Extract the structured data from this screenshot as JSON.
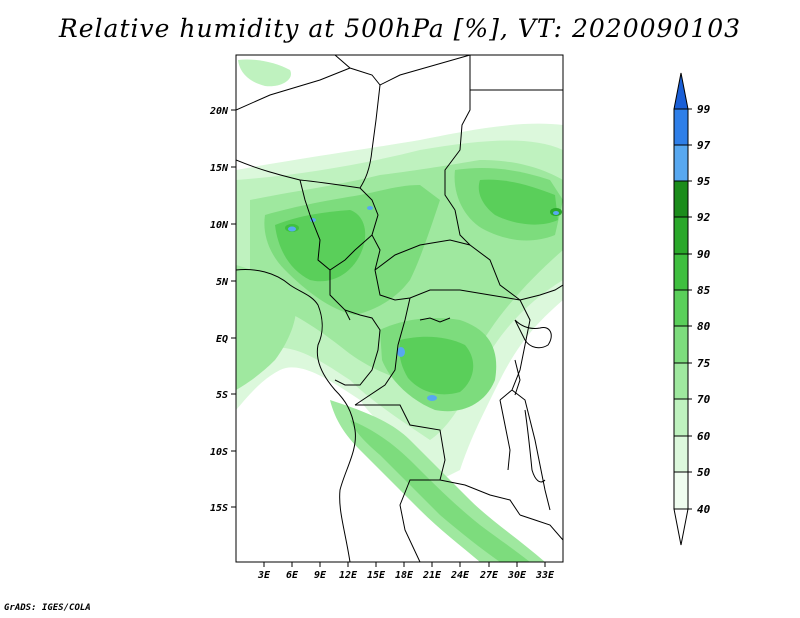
{
  "title": "Relative humidity at 500hPa [%], VT: 2020090103",
  "credit": "GrADS: IGES/COLA",
  "map": {
    "lat_labels": [
      "20N",
      "15N",
      "10N",
      "5N",
      "EQ",
      "5S",
      "10S",
      "15S"
    ],
    "lon_labels": [
      "3E",
      "6E",
      "9E",
      "12E",
      "15E",
      "18E",
      "21E",
      "24E",
      "27E",
      "30E",
      "33E"
    ]
  },
  "colorbar": {
    "levels": [
      "99",
      "97",
      "95",
      "92",
      "90",
      "85",
      "80",
      "75",
      "70",
      "60",
      "50",
      "40"
    ],
    "colors": [
      "#1a5fd6",
      "#2f7fe8",
      "#58a8f0",
      "#1b8c1b",
      "#2aa82a",
      "#3fbf3f",
      "#5acf5a",
      "#7ddc7d",
      "#9fe89f",
      "#bff2bf",
      "#dcf8dc",
      "#f0fdf0",
      "#ffffff"
    ]
  }
}
